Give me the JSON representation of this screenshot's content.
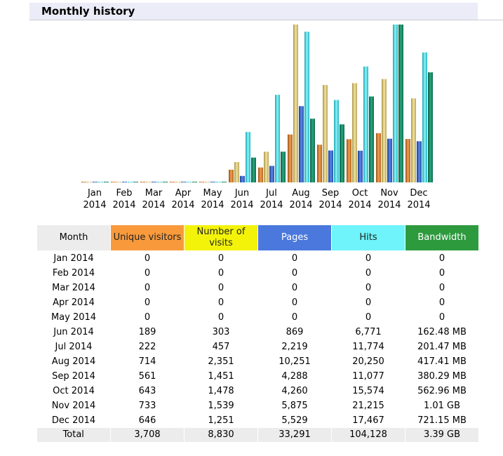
{
  "section_title": "Monthly history",
  "colors": {
    "unique_visitors": "#f89a3c",
    "visits": "#f3f30a",
    "pages": "#4a78dc",
    "hits": "#6ef4fa",
    "bandwidth": "#2e9a3e"
  },
  "table": {
    "headers": [
      "Month",
      "Unique visitors",
      "Number of visits",
      "Pages",
      "Hits",
      "Bandwidth"
    ],
    "rows": [
      [
        "Jan 2014",
        "0",
        "0",
        "0",
        "0",
        "0"
      ],
      [
        "Feb 2014",
        "0",
        "0",
        "0",
        "0",
        "0"
      ],
      [
        "Mar 2014",
        "0",
        "0",
        "0",
        "0",
        "0"
      ],
      [
        "Apr 2014",
        "0",
        "0",
        "0",
        "0",
        "0"
      ],
      [
        "May 2014",
        "0",
        "0",
        "0",
        "0",
        "0"
      ],
      [
        "Jun 2014",
        "189",
        "303",
        "869",
        "6,771",
        "162.48 MB"
      ],
      [
        "Jul 2014",
        "222",
        "457",
        "2,219",
        "11,774",
        "201.47 MB"
      ],
      [
        "Aug 2014",
        "714",
        "2,351",
        "10,251",
        "20,250",
        "417.41 MB"
      ],
      [
        "Sep 2014",
        "561",
        "1,451",
        "4,288",
        "11,077",
        "380.29 MB"
      ],
      [
        "Oct 2014",
        "643",
        "1,478",
        "4,260",
        "15,574",
        "562.96 MB"
      ],
      [
        "Nov 2014",
        "733",
        "1,539",
        "5,875",
        "21,215",
        "1.01 GB"
      ],
      [
        "Dec 2014",
        "646",
        "1,251",
        "5,529",
        "17,467",
        "721.15 MB"
      ]
    ],
    "total": [
      "Total",
      "3,708",
      "8,830",
      "33,291",
      "104,128",
      "3.39 GB"
    ]
  },
  "chart_data": {
    "type": "bar",
    "categories": [
      [
        "Jan",
        "2014"
      ],
      [
        "Feb",
        "2014"
      ],
      [
        "Mar",
        "2014"
      ],
      [
        "Apr",
        "2014"
      ],
      [
        "May",
        "2014"
      ],
      [
        "Jun",
        "2014"
      ],
      [
        "Jul",
        "2014"
      ],
      [
        "Aug",
        "2014"
      ],
      [
        "Sep",
        "2014"
      ],
      [
        "Oct",
        "2014"
      ],
      [
        "Nov",
        "2014"
      ],
      [
        "Dec",
        "2014"
      ]
    ],
    "series": [
      {
        "key": "unique_visitors",
        "values": [
          0,
          0,
          0,
          0,
          0,
          189,
          222,
          714,
          561,
          643,
          733,
          646
        ]
      },
      {
        "key": "visits",
        "values": [
          0,
          0,
          0,
          0,
          0,
          303,
          457,
          2351,
          1451,
          1478,
          1539,
          1251
        ]
      },
      {
        "key": "pages",
        "values": [
          0,
          0,
          0,
          0,
          0,
          869,
          2219,
          10251,
          4288,
          4260,
          5875,
          5529
        ]
      },
      {
        "key": "hits",
        "values": [
          0,
          0,
          0,
          0,
          0,
          6771,
          11774,
          20250,
          11077,
          15574,
          21215,
          17467
        ]
      },
      {
        "key": "bandwidth",
        "unit": "MB",
        "values": [
          0,
          0,
          0,
          0,
          0,
          162.48,
          201.47,
          417.41,
          380.29,
          562.96,
          1034.24,
          721.15
        ]
      }
    ],
    "scale_groups": [
      [
        "unique_visitors",
        "visits"
      ],
      [
        "pages",
        "hits"
      ],
      [
        "bandwidth"
      ]
    ],
    "legend": "none",
    "grid": false
  }
}
